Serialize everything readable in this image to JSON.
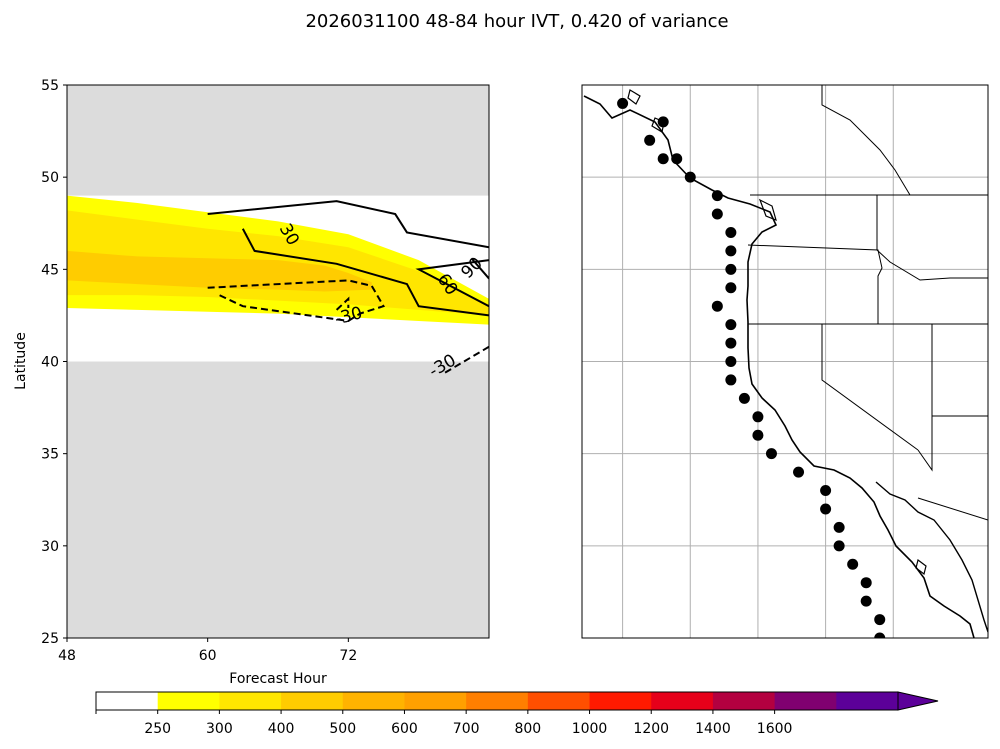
{
  "title": "2026031100 48-84 hour IVT, 0.420 of variance",
  "chart_data": [
    {
      "type": "heatmap",
      "title": "",
      "xlabel": "Forecast Hour",
      "ylabel": "Latitude",
      "xlim": [
        48,
        84
      ],
      "ylim": [
        25,
        55
      ],
      "xticks": [
        "48",
        "60",
        "72"
      ],
      "yticks": [
        "25",
        "30",
        "35",
        "40",
        "45",
        "50",
        "55"
      ],
      "valid_lat_range": [
        40,
        49
      ],
      "masked_fill_color": "#dcdcdc",
      "ivt_bands": [
        {
          "level": 250,
          "upper": [
            [
              48,
              49
            ],
            [
              54,
              48.6
            ],
            [
              60,
              48.1
            ],
            [
              66,
              47.6
            ],
            [
              72,
              46.9
            ],
            [
              78,
              45.5
            ],
            [
              84,
              43.4
            ]
          ],
          "lower": [
            [
              84,
              42
            ],
            [
              78,
              42.2
            ],
            [
              72,
              42.4
            ],
            [
              66,
              42.6
            ],
            [
              60,
              42.7
            ],
            [
              54,
              42.8
            ],
            [
              48,
              42.9
            ]
          ]
        },
        {
          "level": 300,
          "upper": [
            [
              48,
              48.2
            ],
            [
              54,
              47.7
            ],
            [
              60,
              47.2
            ],
            [
              66,
              46.8
            ],
            [
              72,
              46.2
            ],
            [
              78,
              44.9
            ],
            [
              84,
              43.1
            ]
          ],
          "lower": [
            [
              84,
              42.5
            ],
            [
              78,
              42.8
            ],
            [
              72,
              43.1
            ],
            [
              66,
              43.3
            ],
            [
              60,
              43.5
            ],
            [
              54,
              43.6
            ],
            [
              48,
              43.6
            ]
          ]
        },
        {
          "level": 400,
          "upper": [
            [
              48,
              46
            ],
            [
              54,
              45.7
            ],
            [
              60,
              45.6
            ],
            [
              66,
              45.5
            ],
            [
              70,
              45.2
            ],
            [
              72,
              44.8
            ],
            [
              74,
              44.3
            ]
          ],
          "lower": [
            [
              74,
              43.9
            ],
            [
              70,
              43.8
            ],
            [
              66,
              43.9
            ],
            [
              60,
              44
            ],
            [
              54,
              44.2
            ],
            [
              48,
              44.4
            ]
          ]
        }
      ],
      "contours": [
        {
          "label": "30",
          "dashed": false,
          "points": [
            [
              60,
              48
            ],
            [
              71,
              48.7
            ],
            [
              76,
              48
            ],
            [
              77,
              47
            ],
            [
              84,
              46.2
            ]
          ]
        },
        {
          "label": "30",
          "dashed": false,
          "points": [
            [
              63,
              47.2
            ],
            [
              64,
              46
            ],
            [
              71,
              45.3
            ],
            [
              77,
              44.2
            ],
            [
              78,
              43
            ],
            [
              84,
              42.5
            ]
          ]
        },
        {
          "label": "90",
          "dashed": false,
          "points": [
            [
              84,
              45.5
            ],
            [
              78,
              45
            ],
            [
              81,
              44
            ],
            [
              84,
              43
            ]
          ]
        },
        {
          "label": "90",
          "dashed": false,
          "points": [
            [
              82.5,
              45.6
            ],
            [
              84,
              44.5
            ]
          ]
        },
        {
          "label": "-30",
          "dashed": true,
          "points": [
            [
              60,
              44
            ],
            [
              72,
              44.4
            ],
            [
              74,
              44.1
            ],
            [
              75,
              43
            ],
            [
              73,
              42.6
            ],
            [
              72,
              42.2
            ],
            [
              63,
              43
            ],
            [
              61,
              43.6
            ]
          ]
        },
        {
          "label": "",
          "dashed": true,
          "points": [
            [
              71,
              42.8
            ],
            [
              72,
              43.4
            ],
            [
              72,
              42.9
            ]
          ]
        },
        {
          "label": "-30",
          "dashed": true,
          "points": [
            [
              84,
              40.8
            ],
            [
              80,
              39.3
            ]
          ]
        }
      ],
      "contour_labels": [
        {
          "text": "30",
          "x": 67,
          "y": 46.9,
          "rotate": 60
        },
        {
          "text": "60",
          "x": 80.5,
          "y": 44.2,
          "rotate": 55
        },
        {
          "text": "90",
          "x": 82.5,
          "y": 45.1,
          "rotate": -45
        },
        {
          "text": "-30",
          "x": 72,
          "y": 42.5,
          "rotate": -15
        },
        {
          "text": "-30",
          "x": 80,
          "y": 39.8,
          "rotate": -30
        }
      ]
    },
    {
      "type": "scatter",
      "title": "",
      "xlabel": "",
      "ylabel": "",
      "xlim": [
        -140,
        -110
      ],
      "ylim": [
        25,
        55
      ],
      "grid": true,
      "gridlines_lon": [
        -137,
        -132,
        -127,
        -122,
        -117
      ],
      "gridlines_lat": [
        30,
        35,
        40,
        45,
        50
      ],
      "points": [
        {
          "lon": -137,
          "lat": 54
        },
        {
          "lon": -134,
          "lat": 53
        },
        {
          "lon": -135,
          "lat": 52
        },
        {
          "lon": -133,
          "lat": 51
        },
        {
          "lon": -134,
          "lat": 51
        },
        {
          "lon": -132,
          "lat": 50
        },
        {
          "lon": -130,
          "lat": 49
        },
        {
          "lon": -130,
          "lat": 48
        },
        {
          "lon": -129,
          "lat": 47
        },
        {
          "lon": -129,
          "lat": 46
        },
        {
          "lon": -129,
          "lat": 45
        },
        {
          "lon": -129,
          "lat": 44
        },
        {
          "lon": -130,
          "lat": 43
        },
        {
          "lon": -129,
          "lat": 42
        },
        {
          "lon": -129,
          "lat": 41
        },
        {
          "lon": -129,
          "lat": 40
        },
        {
          "lon": -129,
          "lat": 39
        },
        {
          "lon": -128,
          "lat": 38
        },
        {
          "lon": -127,
          "lat": 37
        },
        {
          "lon": -127,
          "lat": 36
        },
        {
          "lon": -126,
          "lat": 35
        },
        {
          "lon": -124,
          "lat": 34
        },
        {
          "lon": -122,
          "lat": 33
        },
        {
          "lon": -122,
          "lat": 32
        },
        {
          "lon": -121,
          "lat": 31
        },
        {
          "lon": -121,
          "lat": 30
        },
        {
          "lon": -120,
          "lat": 29
        },
        {
          "lon": -119,
          "lat": 28
        },
        {
          "lon": -119,
          "lat": 27
        },
        {
          "lon": -118,
          "lat": 26
        },
        {
          "lon": -118,
          "lat": 25
        }
      ]
    }
  ],
  "colorbar": {
    "ticks": [
      "250",
      "300",
      "400",
      "500",
      "600",
      "700",
      "800",
      "1000",
      "1200",
      "1400",
      "1600"
    ],
    "colors": [
      "#ffffff",
      "#ffff00",
      "#ffe600",
      "#ffcc00",
      "#ffb300",
      "#ffa000",
      "#ff7f00",
      "#ff4f00",
      "#ff1a00",
      "#e6001a",
      "#b30040",
      "#800070",
      "#5c0099"
    ]
  }
}
